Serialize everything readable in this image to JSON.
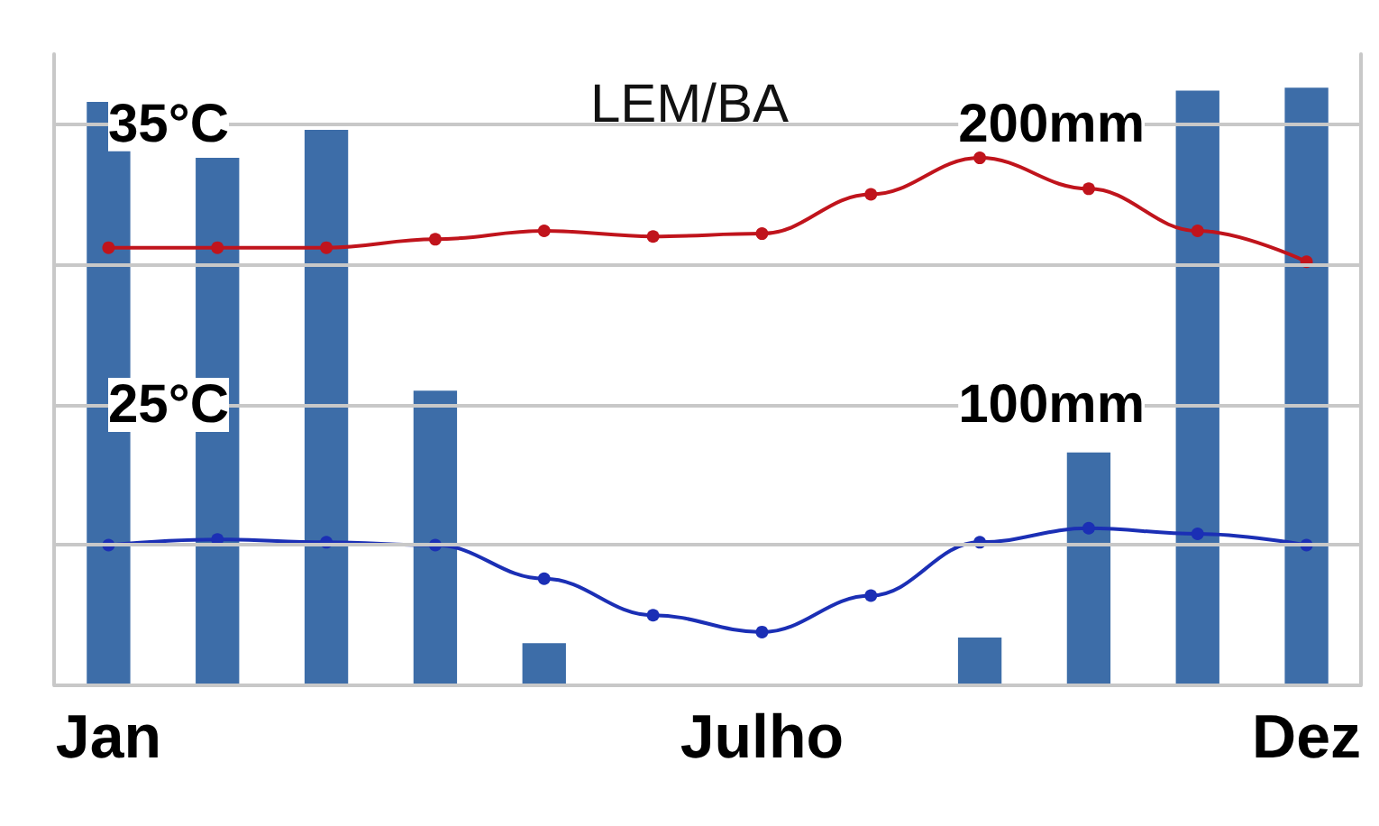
{
  "chart_data": {
    "type": "bar",
    "title": "LEM/BA",
    "categories": [
      "Jan",
      null,
      null,
      null,
      null,
      null,
      "Julho",
      null,
      null,
      null,
      null,
      "Dez"
    ],
    "series": [
      {
        "axis": "y2",
        "color": "#3d6da8",
        "values": [
          208,
          188,
          198,
          105,
          15,
          0,
          0,
          0,
          17,
          83,
          212,
          213
        ]
      },
      {
        "type": "line",
        "color": "#c0141c",
        "values": [
          30.6,
          30.6,
          30.6,
          30.9,
          31.2,
          31.0,
          31.1,
          32.5,
          33.8,
          32.7,
          31.2,
          30.1
        ]
      },
      {
        "type": "line",
        "color": "#1b2fb5",
        "values": [
          20.0,
          20.2,
          20.1,
          20.0,
          18.8,
          17.5,
          16.9,
          18.2,
          20.1,
          20.6,
          20.4,
          20.0
        ]
      }
    ],
    "ylim": [
      15,
      37.5
    ],
    "yticks": [
      {
        "value": 15,
        "label": null
      },
      {
        "value": 20,
        "label": null
      },
      {
        "value": 25,
        "label": "25°C"
      },
      {
        "value": 30,
        "label": null
      },
      {
        "value": 35,
        "label": "35°C"
      }
    ],
    "y2lim": [
      0,
      225
    ],
    "y2ticks": [
      {
        "value": 100,
        "label": "100mm"
      },
      {
        "value": 200,
        "label": "200mm"
      }
    ],
    "grid": "y",
    "marker": "circle",
    "line_style": "solid"
  }
}
